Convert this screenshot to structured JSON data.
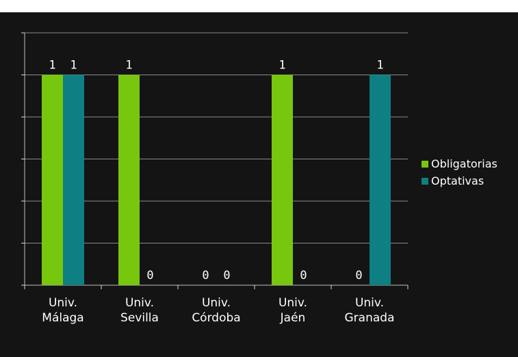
{
  "chart_data": {
    "type": "bar",
    "categories": [
      [
        "Univ.",
        "Málaga"
      ],
      [
        "Univ.",
        "Sevilla"
      ],
      [
        "Univ.",
        "Córdoba"
      ],
      [
        "Univ.",
        "Jaén"
      ],
      [
        "Univ.",
        "Granada"
      ]
    ],
    "series": [
      {
        "name": "Obligatorias",
        "values": [
          1,
          1,
          0,
          1,
          0
        ],
        "color": "#77c70e"
      },
      {
        "name": "Optativas",
        "values": [
          1,
          0,
          0,
          0,
          1
        ],
        "color": "#0e7f83"
      }
    ],
    "ylim": [
      0,
      1.2
    ],
    "gridlines": true,
    "data_labels": true,
    "legend_position": "right",
    "background_color": "#141414"
  }
}
